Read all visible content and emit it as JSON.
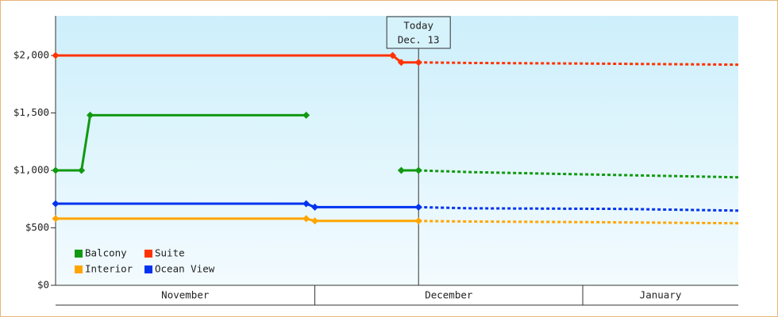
{
  "chart_data": {
    "type": "line",
    "months": [
      "November",
      "December",
      "January"
    ],
    "month_starts": [
      0,
      30,
      61
    ],
    "xlim": [
      0,
      79
    ],
    "ylim": [
      0,
      2345
    ],
    "yticks": [
      {
        "value": 0,
        "label": "$0"
      },
      {
        "value": 500,
        "label": "$500"
      },
      {
        "value": 1000,
        "label": "$1,000"
      },
      {
        "value": 1500,
        "label": "$1,500"
      },
      {
        "value": 2000,
        "label": "$2,000"
      }
    ],
    "annotation": {
      "x": 42,
      "lines": [
        "Today",
        "Dec. 13"
      ]
    },
    "legend": "lower left",
    "series": [
      {
        "name": "Balcony",
        "color": "#119911",
        "x": [
          0,
          3,
          4,
          29,
          35,
          40,
          42
        ],
        "values": [
          1000,
          1000,
          1480,
          1480,
          null,
          1000,
          1000
        ],
        "forecast": {
          "x": [
            42,
            48,
            58,
            79
          ],
          "values": [
            1000,
            985,
            970,
            940
          ]
        }
      },
      {
        "name": "Suite",
        "color": "#ff3300",
        "x": [
          0,
          39,
          40,
          42
        ],
        "values": [
          2000,
          2000,
          1940,
          1940
        ],
        "forecast": {
          "x": [
            42,
            48,
            61,
            79
          ],
          "values": [
            1940,
            1935,
            1930,
            1920
          ]
        }
      },
      {
        "name": "Interior",
        "color": "#ffa500",
        "x": [
          0,
          29,
          30,
          42
        ],
        "values": [
          580,
          580,
          560,
          560
        ],
        "forecast": {
          "x": [
            42,
            48,
            61,
            79
          ],
          "values": [
            560,
            555,
            550,
            540
          ]
        }
      },
      {
        "name": "Ocean View",
        "color": "#0033ee",
        "x": [
          0,
          29,
          30,
          42
        ],
        "values": [
          710,
          710,
          680,
          680
        ],
        "forecast": {
          "x": [
            42,
            48,
            65,
            79
          ],
          "values": [
            680,
            670,
            665,
            650
          ]
        }
      }
    ]
  }
}
